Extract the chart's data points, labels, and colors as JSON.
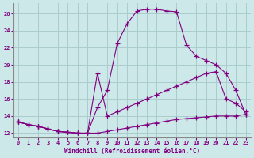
{
  "xlabel": "Windchill (Refroidissement éolien,°C)",
  "bg_color": "#cce8e8",
  "grid_color": "#aacccc",
  "line_color": "#800080",
  "xlim": [
    -0.5,
    23.5
  ],
  "ylim": [
    11.5,
    27.2
  ],
  "xticks": [
    0,
    1,
    2,
    3,
    4,
    5,
    6,
    7,
    8,
    9,
    10,
    11,
    12,
    13,
    14,
    15,
    16,
    17,
    18,
    19,
    20,
    21,
    22,
    23
  ],
  "yticks": [
    12,
    14,
    16,
    18,
    20,
    22,
    24,
    26
  ],
  "series1_x": [
    0,
    1,
    2,
    3,
    4,
    5,
    6,
    7,
    8,
    9,
    10,
    11,
    12,
    13,
    14,
    15,
    16,
    17,
    18,
    19,
    20,
    21,
    22,
    23
  ],
  "series1_y": [
    13.3,
    13.0,
    12.8,
    12.5,
    12.2,
    12.1,
    12.0,
    12.0,
    15.0,
    17.0,
    22.5,
    24.8,
    26.3,
    26.5,
    26.5,
    26.3,
    26.2,
    22.3,
    21.0,
    20.5,
    20.0,
    19.0,
    17.0,
    14.2
  ],
  "series2_x": [
    0,
    1,
    2,
    3,
    4,
    5,
    6,
    7,
    8,
    9,
    10,
    11,
    12,
    13,
    14,
    15,
    16,
    17,
    18,
    19,
    20,
    21,
    22,
    23
  ],
  "series2_y": [
    13.3,
    13.0,
    12.8,
    12.5,
    12.2,
    12.1,
    12.0,
    12.0,
    19.0,
    14.0,
    14.5,
    15.0,
    15.5,
    16.0,
    16.5,
    17.0,
    17.5,
    18.0,
    18.5,
    19.0,
    19.2,
    16.0,
    15.5,
    14.5
  ],
  "series3_x": [
    0,
    1,
    2,
    3,
    4,
    5,
    6,
    7,
    8,
    9,
    10,
    11,
    12,
    13,
    14,
    15,
    16,
    17,
    18,
    19,
    20,
    21,
    22,
    23
  ],
  "series3_y": [
    13.3,
    13.0,
    12.8,
    12.5,
    12.2,
    12.1,
    12.0,
    12.0,
    12.0,
    12.2,
    12.4,
    12.6,
    12.8,
    13.0,
    13.2,
    13.4,
    13.6,
    13.7,
    13.8,
    13.9,
    14.0,
    14.0,
    14.0,
    14.2
  ]
}
